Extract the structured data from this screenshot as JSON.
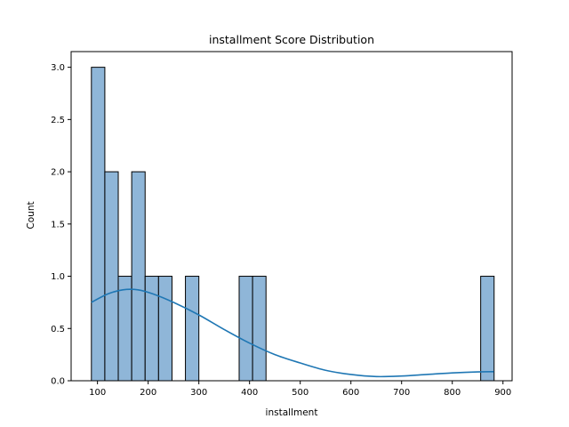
{
  "chart_data": {
    "type": "histogram",
    "title": "installment Score Distribution",
    "xlabel": "installment",
    "ylabel": "Count",
    "xlim": [
      48,
      918
    ],
    "ylim": [
      0,
      3.15
    ],
    "xticks": [
      100,
      200,
      300,
      400,
      500,
      600,
      700,
      800,
      900
    ],
    "xtick_labels": [
      "100",
      "200",
      "300",
      "400",
      "500",
      "600",
      "700",
      "800",
      "900"
    ],
    "yticks": [
      0.0,
      0.5,
      1.0,
      1.5,
      2.0,
      2.5,
      3.0
    ],
    "ytick_labels": [
      "0.0",
      "0.5",
      "1.0",
      "1.5",
      "2.0",
      "2.5",
      "3.0"
    ],
    "bins": [
      {
        "x0": 88,
        "x1": 114.5,
        "count": 3
      },
      {
        "x0": 114.5,
        "x1": 141,
        "count": 2
      },
      {
        "x0": 141,
        "x1": 167.5,
        "count": 1
      },
      {
        "x0": 167.5,
        "x1": 194,
        "count": 2
      },
      {
        "x0": 194,
        "x1": 220.5,
        "count": 1
      },
      {
        "x0": 220.5,
        "x1": 247,
        "count": 1
      },
      {
        "x0": 273.5,
        "x1": 300,
        "count": 1
      },
      {
        "x0": 379.5,
        "x1": 406,
        "count": 1
      },
      {
        "x0": 406,
        "x1": 432.5,
        "count": 1
      },
      {
        "x0": 856,
        "x1": 882.5,
        "count": 1
      }
    ],
    "kde": {
      "x": [
        88,
        120,
        150,
        180,
        210,
        250,
        300,
        350,
        400,
        450,
        500,
        550,
        600,
        650,
        700,
        750,
        800,
        850,
        882
      ],
      "y": [
        0.75,
        0.83,
        0.87,
        0.87,
        0.83,
        0.75,
        0.63,
        0.49,
        0.36,
        0.25,
        0.17,
        0.1,
        0.06,
        0.04,
        0.045,
        0.06,
        0.075,
        0.085,
        0.087
      ]
    },
    "colors": {
      "bar_fill": "#8fb6d8",
      "bar_edge": "#000000",
      "kde_line": "#1f77b4"
    },
    "grid": false,
    "legend": "none"
  }
}
